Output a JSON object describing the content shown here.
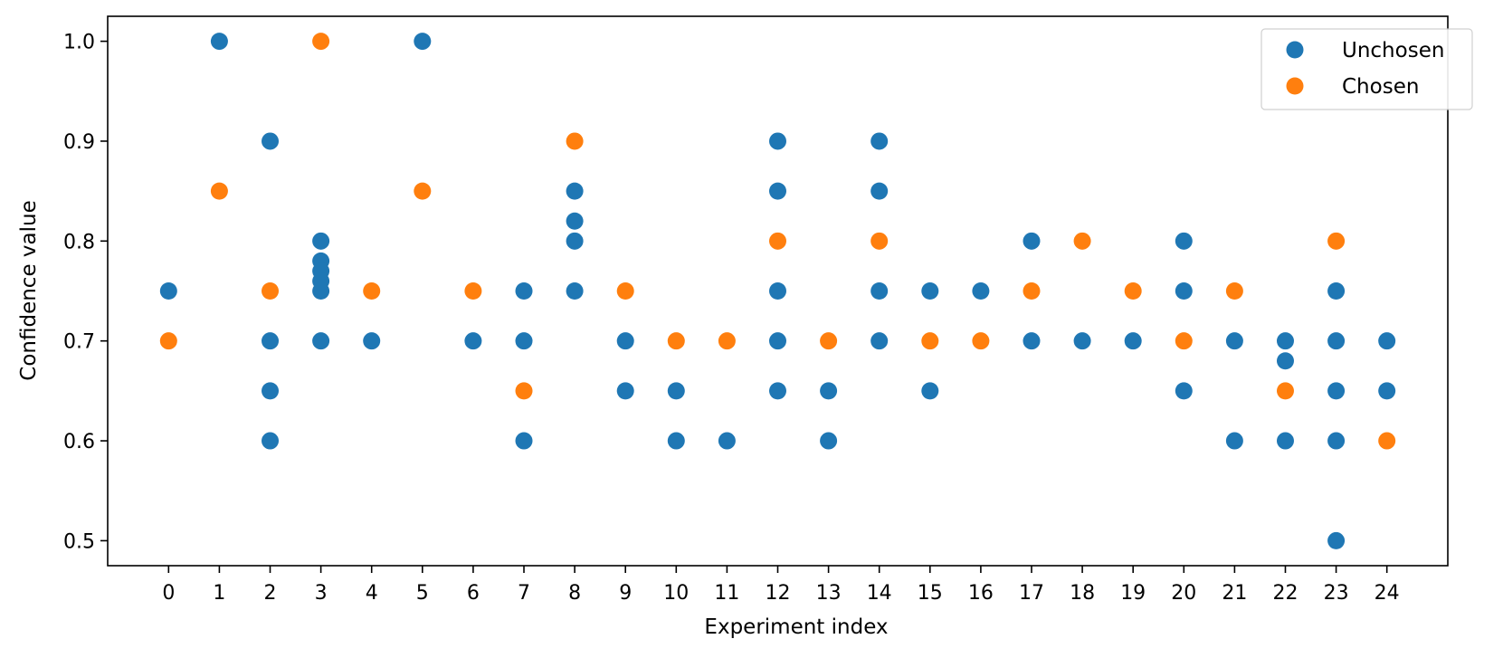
{
  "chart_data": {
    "type": "scatter",
    "title": "",
    "xlabel": "Experiment index",
    "ylabel": "Confidence value",
    "xlim": [
      -1.2,
      25.2
    ],
    "ylim": [
      0.475,
      1.025
    ],
    "xticks": [
      0,
      1,
      2,
      3,
      4,
      5,
      6,
      7,
      8,
      9,
      10,
      11,
      12,
      13,
      14,
      15,
      16,
      17,
      18,
      19,
      20,
      21,
      22,
      23,
      24
    ],
    "yticks": [
      "0.5",
      "0.6",
      "0.7",
      "0.8",
      "0.9",
      "1.0"
    ],
    "grid": false,
    "legend": {
      "placement": "top-right",
      "entries": [
        "Unchosen",
        "Chosen"
      ]
    },
    "series": [
      {
        "name": "Unchosen",
        "color": "#1f77b4",
        "points": [
          [
            0,
            0.75
          ],
          [
            1,
            1.0
          ],
          [
            2,
            0.9
          ],
          [
            2,
            0.7
          ],
          [
            2,
            0.65
          ],
          [
            2,
            0.6
          ],
          [
            3,
            0.8
          ],
          [
            3,
            0.78
          ],
          [
            3,
            0.77
          ],
          [
            3,
            0.76
          ],
          [
            3,
            0.75
          ],
          [
            3,
            0.7
          ],
          [
            4,
            0.7
          ],
          [
            5,
            1.0
          ],
          [
            6,
            0.7
          ],
          [
            7,
            0.75
          ],
          [
            7,
            0.7
          ],
          [
            7,
            0.6
          ],
          [
            8,
            0.85
          ],
          [
            8,
            0.82
          ],
          [
            8,
            0.8
          ],
          [
            8,
            0.75
          ],
          [
            9,
            0.7
          ],
          [
            9,
            0.65
          ],
          [
            10,
            0.65
          ],
          [
            10,
            0.6
          ],
          [
            11,
            0.6
          ],
          [
            12,
            0.9
          ],
          [
            12,
            0.85
          ],
          [
            12,
            0.75
          ],
          [
            12,
            0.7
          ],
          [
            12,
            0.65
          ],
          [
            13,
            0.65
          ],
          [
            13,
            0.6
          ],
          [
            14,
            0.9
          ],
          [
            14,
            0.85
          ],
          [
            14,
            0.75
          ],
          [
            14,
            0.7
          ],
          [
            15,
            0.75
          ],
          [
            15,
            0.65
          ],
          [
            16,
            0.75
          ],
          [
            17,
            0.8
          ],
          [
            17,
            0.7
          ],
          [
            18,
            0.7
          ],
          [
            19,
            0.7
          ],
          [
            20,
            0.8
          ],
          [
            20,
            0.75
          ],
          [
            20,
            0.65
          ],
          [
            21,
            0.7
          ],
          [
            21,
            0.6
          ],
          [
            22,
            0.7
          ],
          [
            22,
            0.68
          ],
          [
            22,
            0.6
          ],
          [
            23,
            0.75
          ],
          [
            23,
            0.7
          ],
          [
            23,
            0.65
          ],
          [
            23,
            0.6
          ],
          [
            23,
            0.5
          ],
          [
            24,
            0.7
          ],
          [
            24,
            0.65
          ]
        ]
      },
      {
        "name": "Chosen",
        "color": "#ff7f0e",
        "points": [
          [
            0,
            0.7
          ],
          [
            1,
            0.85
          ],
          [
            2,
            0.75
          ],
          [
            3,
            1.0
          ],
          [
            4,
            0.75
          ],
          [
            5,
            0.85
          ],
          [
            6,
            0.75
          ],
          [
            7,
            0.65
          ],
          [
            8,
            0.9
          ],
          [
            9,
            0.75
          ],
          [
            10,
            0.7
          ],
          [
            11,
            0.7
          ],
          [
            12,
            0.8
          ],
          [
            13,
            0.7
          ],
          [
            14,
            0.8
          ],
          [
            15,
            0.7
          ],
          [
            16,
            0.7
          ],
          [
            17,
            0.75
          ],
          [
            18,
            0.8
          ],
          [
            19,
            0.75
          ],
          [
            20,
            0.7
          ],
          [
            21,
            0.75
          ],
          [
            22,
            0.65
          ],
          [
            23,
            0.8
          ],
          [
            24,
            0.6
          ]
        ]
      }
    ]
  }
}
